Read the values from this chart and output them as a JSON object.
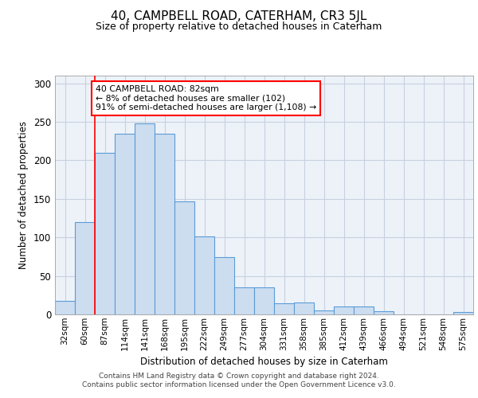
{
  "title": "40, CAMPBELL ROAD, CATERHAM, CR3 5JL",
  "subtitle": "Size of property relative to detached houses in Caterham",
  "xlabel": "Distribution of detached houses by size in Caterham",
  "ylabel": "Number of detached properties",
  "footer_line1": "Contains HM Land Registry data © Crown copyright and database right 2024.",
  "footer_line2": "Contains public sector information licensed under the Open Government Licence v3.0.",
  "categories": [
    "32sqm",
    "60sqm",
    "87sqm",
    "114sqm",
    "141sqm",
    "168sqm",
    "195sqm",
    "222sqm",
    "249sqm",
    "277sqm",
    "304sqm",
    "331sqm",
    "358sqm",
    "385sqm",
    "412sqm",
    "439sqm",
    "466sqm",
    "494sqm",
    "521sqm",
    "548sqm",
    "575sqm"
  ],
  "bar_values": [
    18,
    120,
    210,
    235,
    248,
    235,
    147,
    101,
    74,
    35,
    35,
    14,
    15,
    5,
    10,
    10,
    4,
    0,
    0,
    0,
    3
  ],
  "bar_color": "#ccddf0",
  "bar_edge_color": "#5b9bd5",
  "grid_color": "#c8d0e0",
  "background_color": "#edf2f9",
  "red_line_x": 1.5,
  "annotation_text": "40 CAMPBELL ROAD: 82sqm\n← 8% of detached houses are smaller (102)\n91% of semi-detached houses are larger (1,108) →",
  "annotation_box_color": "white",
  "annotation_box_edge_color": "red",
  "ylim": [
    0,
    310
  ],
  "yticks": [
    0,
    50,
    100,
    150,
    200,
    250,
    300
  ]
}
